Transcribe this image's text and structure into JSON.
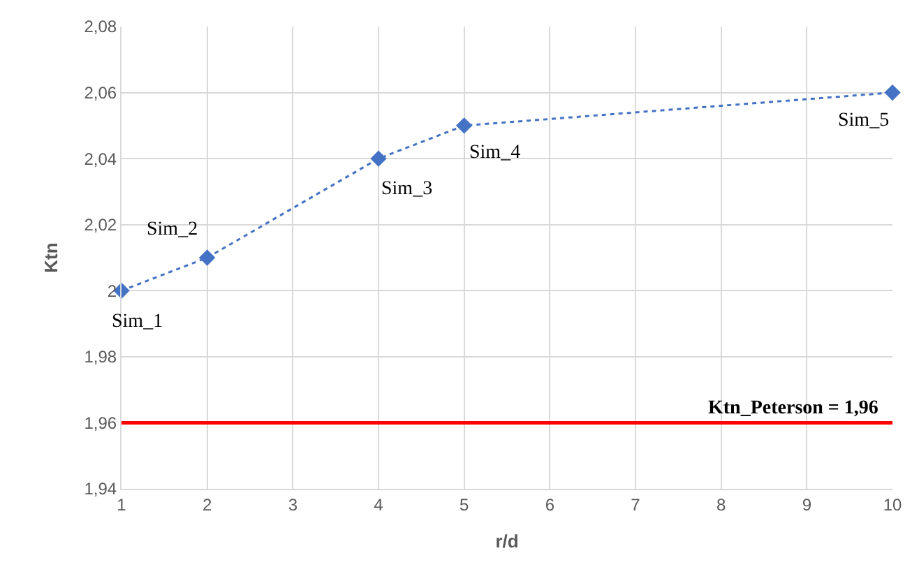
{
  "chart_data": {
    "type": "line",
    "xlabel": "r/d",
    "ylabel": "Ktn",
    "x": [
      1,
      2,
      4,
      5,
      10
    ],
    "series": [
      {
        "color": "#4472c4",
        "values": [
          2.0,
          2.01,
          2.04,
          2.05,
          2.06
        ]
      }
    ],
    "marker": "diamond",
    "line_style": "dotted",
    "grid": true,
    "xlim": [
      1,
      10
    ],
    "xticks": [
      1,
      2,
      3,
      4,
      5,
      6,
      7,
      8,
      9,
      10
    ],
    "ylim": [
      1.94,
      2.08
    ],
    "yticks": [
      {
        "value": 1.94,
        "label": "1,94"
      },
      {
        "value": 1.96,
        "label": "1,96"
      },
      {
        "value": 1.98,
        "label": "1,98"
      },
      2,
      {
        "value": 2.02,
        "label": "2,02"
      },
      {
        "value": 2.04,
        "label": "2,04"
      },
      {
        "value": 2.06,
        "label": "2,06"
      },
      {
        "value": 2.08,
        "label": "2,08"
      }
    ],
    "ref_lines": [
      {
        "axis": "y",
        "value": 1.96,
        "label": "Ktn_Peterson = 1,96",
        "color": "#ff0000",
        "line_style": "solid"
      }
    ],
    "annotations": [
      {
        "text": "Sim_1",
        "x": 1,
        "y": 2.0
      },
      {
        "text": "Sim_2",
        "x": 2,
        "y": 2.01
      },
      {
        "text": "Sim_3",
        "x": 4,
        "y": 2.04
      },
      {
        "text": "Sim_4",
        "x": 5,
        "y": 2.05
      },
      {
        "text": "Sim_5",
        "x": 10,
        "y": 2.06
      }
    ]
  }
}
